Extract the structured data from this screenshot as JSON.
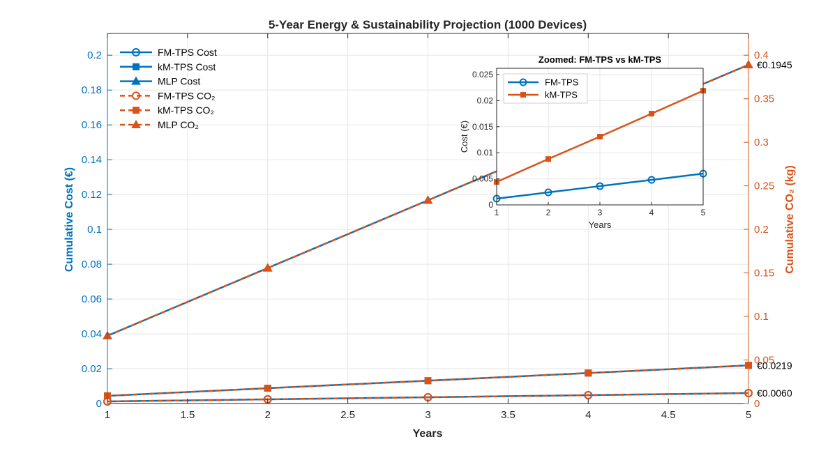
{
  "colors": {
    "cost": "#0072BD",
    "co2": "#D95319",
    "grid": "#e6e6e6",
    "axis": "#262626",
    "left_axis_label": "#0072BD"
  },
  "chart_data": [
    {
      "type": "line",
      "title": "5-Year Energy & Sustainability Projection (1000 Devices)",
      "xlabel": "Years",
      "ylabel_left": "Cumulative Cost (€)",
      "ylabel_right": "Cumulative CO₂ (kg)",
      "xlim": [
        1,
        5
      ],
      "ylim_left": [
        0,
        0.2125
      ],
      "ylim_right": [
        0,
        0.425
      ],
      "xticks": [
        "1",
        "1.5",
        "2",
        "2.5",
        "3",
        "3.5",
        "4",
        "4.5",
        "5"
      ],
      "yticks_left": [
        "0",
        "0.02",
        "0.04",
        "0.06",
        "0.08",
        "0.1",
        "0.12",
        "0.14",
        "0.16",
        "0.18",
        "0.2"
      ],
      "yticks_right": [
        "0",
        "0.05",
        "0.1",
        "0.15",
        "0.2",
        "0.25",
        "0.3",
        "0.35",
        "0.4"
      ],
      "grid": true,
      "legend_position": "top-left",
      "x": [
        1,
        2,
        3,
        4,
        5
      ],
      "series": [
        {
          "name": "FM-TPS Cost",
          "axis": "left",
          "color": "cost",
          "marker": "circle",
          "dash": "solid",
          "values": [
            0.0012,
            0.0024,
            0.0036,
            0.0048,
            0.006
          ]
        },
        {
          "name": "kM-TPS Cost",
          "axis": "left",
          "color": "cost",
          "marker": "square",
          "dash": "solid",
          "values": [
            0.0044,
            0.0088,
            0.0131,
            0.0175,
            0.0219
          ]
        },
        {
          "name": "MLP Cost",
          "axis": "left",
          "color": "cost",
          "marker": "triangle",
          "dash": "solid",
          "values": [
            0.0389,
            0.0778,
            0.1167,
            0.1556,
            0.1945
          ]
        },
        {
          "name": "FM-TPS CO₂",
          "axis": "right",
          "color": "co2",
          "marker": "circle",
          "dash": "dashed",
          "values": [
            0.0024,
            0.0048,
            0.0072,
            0.0096,
            0.012
          ]
        },
        {
          "name": "kM-TPS CO₂",
          "axis": "right",
          "color": "co2",
          "marker": "square",
          "dash": "dashed",
          "values": [
            0.0088,
            0.0176,
            0.0262,
            0.035,
            0.0438
          ]
        },
        {
          "name": "MLP CO₂",
          "axis": "right",
          "color": "co2",
          "marker": "triangle",
          "dash": "dashed",
          "values": [
            0.0778,
            0.1556,
            0.2334,
            0.3112,
            0.389
          ]
        }
      ],
      "annotations": [
        {
          "text": "€0.1945",
          "x": 5,
          "y": 0.1945
        },
        {
          "text": "€0.0219",
          "x": 5,
          "y": 0.0219
        },
        {
          "text": "€0.0060",
          "x": 5,
          "y": 0.006
        }
      ]
    },
    {
      "type": "line",
      "title": "Zoomed: FM-TPS vs kM-TPS",
      "xlabel": "Years",
      "ylabel": "Cost (€)",
      "xlim": [
        1,
        5
      ],
      "ylim": [
        0,
        0.0262
      ],
      "xticks": [
        "1",
        "2",
        "3",
        "4",
        "5"
      ],
      "yticks": [
        "0",
        "0.005",
        "0.01",
        "0.015",
        "0.02",
        "0.025"
      ],
      "grid": true,
      "legend_position": "top-left",
      "x": [
        1,
        2,
        3,
        4,
        5
      ],
      "series": [
        {
          "name": "FM-TPS",
          "color": "cost",
          "marker": "circle",
          "values": [
            0.0012,
            0.0024,
            0.0036,
            0.0048,
            0.006
          ]
        },
        {
          "name": "kM-TPS",
          "color": "co2",
          "marker": "square",
          "values": [
            0.0044,
            0.0088,
            0.0131,
            0.0175,
            0.0219
          ]
        }
      ]
    }
  ]
}
